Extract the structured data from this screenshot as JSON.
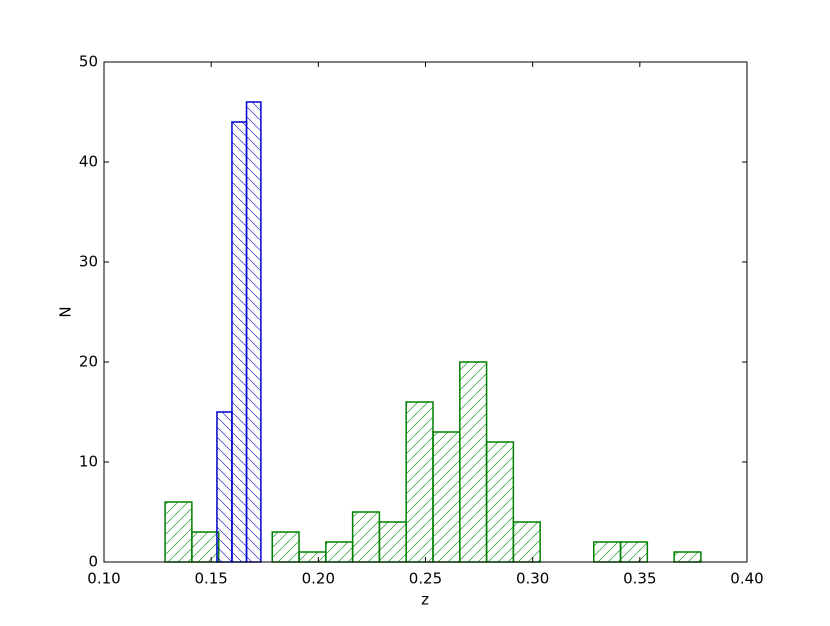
{
  "chart_data": {
    "type": "histogram",
    "xlabel": "z",
    "ylabel": "N",
    "xlim": [
      0.1,
      0.4
    ],
    "xticks": [
      {
        "value": 0.1,
        "label": "0.10"
      },
      {
        "value": 0.15,
        "label": "0.15"
      },
      {
        "value": 0.2,
        "label": "0.20"
      },
      {
        "value": 0.25,
        "label": "0.25"
      },
      {
        "value": 0.3,
        "label": "0.30"
      },
      {
        "value": 0.35,
        "label": "0.35"
      },
      {
        "value": 0.4,
        "label": "0.40"
      }
    ],
    "ylim": [
      0,
      50
    ],
    "yticks": [
      0,
      10,
      20,
      30,
      40,
      50
    ],
    "series": [
      {
        "color": "#008000",
        "hatch": "/",
        "bins": [
          0.1285,
          0.141,
          0.1535,
          0.166,
          0.1785,
          0.191,
          0.2035,
          0.216,
          0.2285,
          0.241,
          0.2535,
          0.266,
          0.2785,
          0.291,
          0.3035,
          0.316,
          0.3285,
          0.341,
          0.3535,
          0.366,
          0.3785
        ],
        "values": [
          6,
          3,
          0,
          0,
          3,
          1,
          2,
          5,
          4,
          16,
          13,
          20,
          12,
          4,
          0,
          0,
          2,
          2,
          0,
          1
        ]
      },
      {
        "color": "#0000cc",
        "hatch": "\\",
        "bins": [
          0.1527,
          0.1597,
          0.1665,
          0.1732
        ],
        "values": [
          15,
          44,
          46
        ]
      }
    ]
  }
}
